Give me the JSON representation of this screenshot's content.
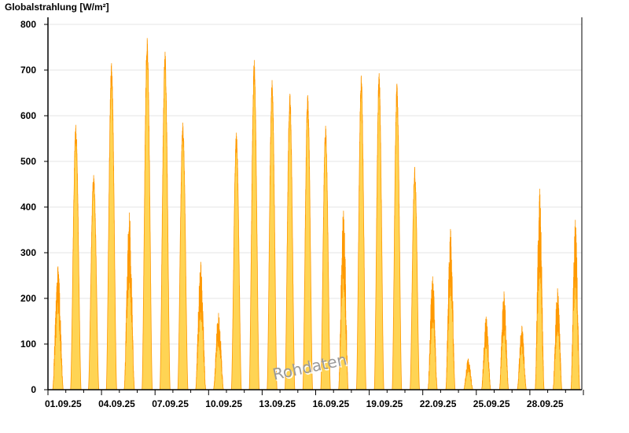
{
  "chart_data": {
    "type": "area",
    "title": "Globalstrahlung [W/m²]",
    "ylabel": "Globalstrahlung [W/m²]",
    "xlabel": "",
    "ylim": [
      0,
      800
    ],
    "yticks": [
      0,
      100,
      200,
      300,
      400,
      500,
      600,
      700,
      800
    ],
    "xticks": [
      "01.09.25",
      "04.09.25",
      "07.09.25",
      "10.09.25",
      "13.09.25",
      "16.09.25",
      "19.09.25",
      "22.09.25",
      "25.09.25",
      "28.09.25"
    ],
    "grid": true,
    "dates": [
      "01.09.25",
      "02.09.25",
      "03.09.25",
      "04.09.25",
      "05.09.25",
      "06.09.25",
      "07.09.25",
      "08.09.25",
      "09.09.25",
      "10.09.25",
      "11.09.25",
      "12.09.25",
      "13.09.25",
      "14.09.25",
      "15.09.25",
      "16.09.25",
      "17.09.25",
      "18.09.25",
      "19.09.25",
      "20.09.25",
      "21.09.25",
      "22.09.25",
      "23.09.25",
      "24.09.25",
      "25.09.25",
      "26.09.25",
      "27.09.25",
      "28.09.25",
      "29.09.25",
      "30.09.25"
    ],
    "daily_peak": [
      270,
      580,
      470,
      715,
      388,
      770,
      740,
      585,
      280,
      168,
      563,
      722,
      678,
      648,
      645,
      578,
      392,
      688,
      693,
      670,
      488,
      248,
      352,
      68,
      160,
      215,
      140,
      440,
      222,
      372
    ],
    "colors": {
      "fill": "#ffd454",
      "line": "#ff9900",
      "grid": "#e6e6e6",
      "axis": "#000000"
    },
    "watermark": "Rohdaten"
  }
}
